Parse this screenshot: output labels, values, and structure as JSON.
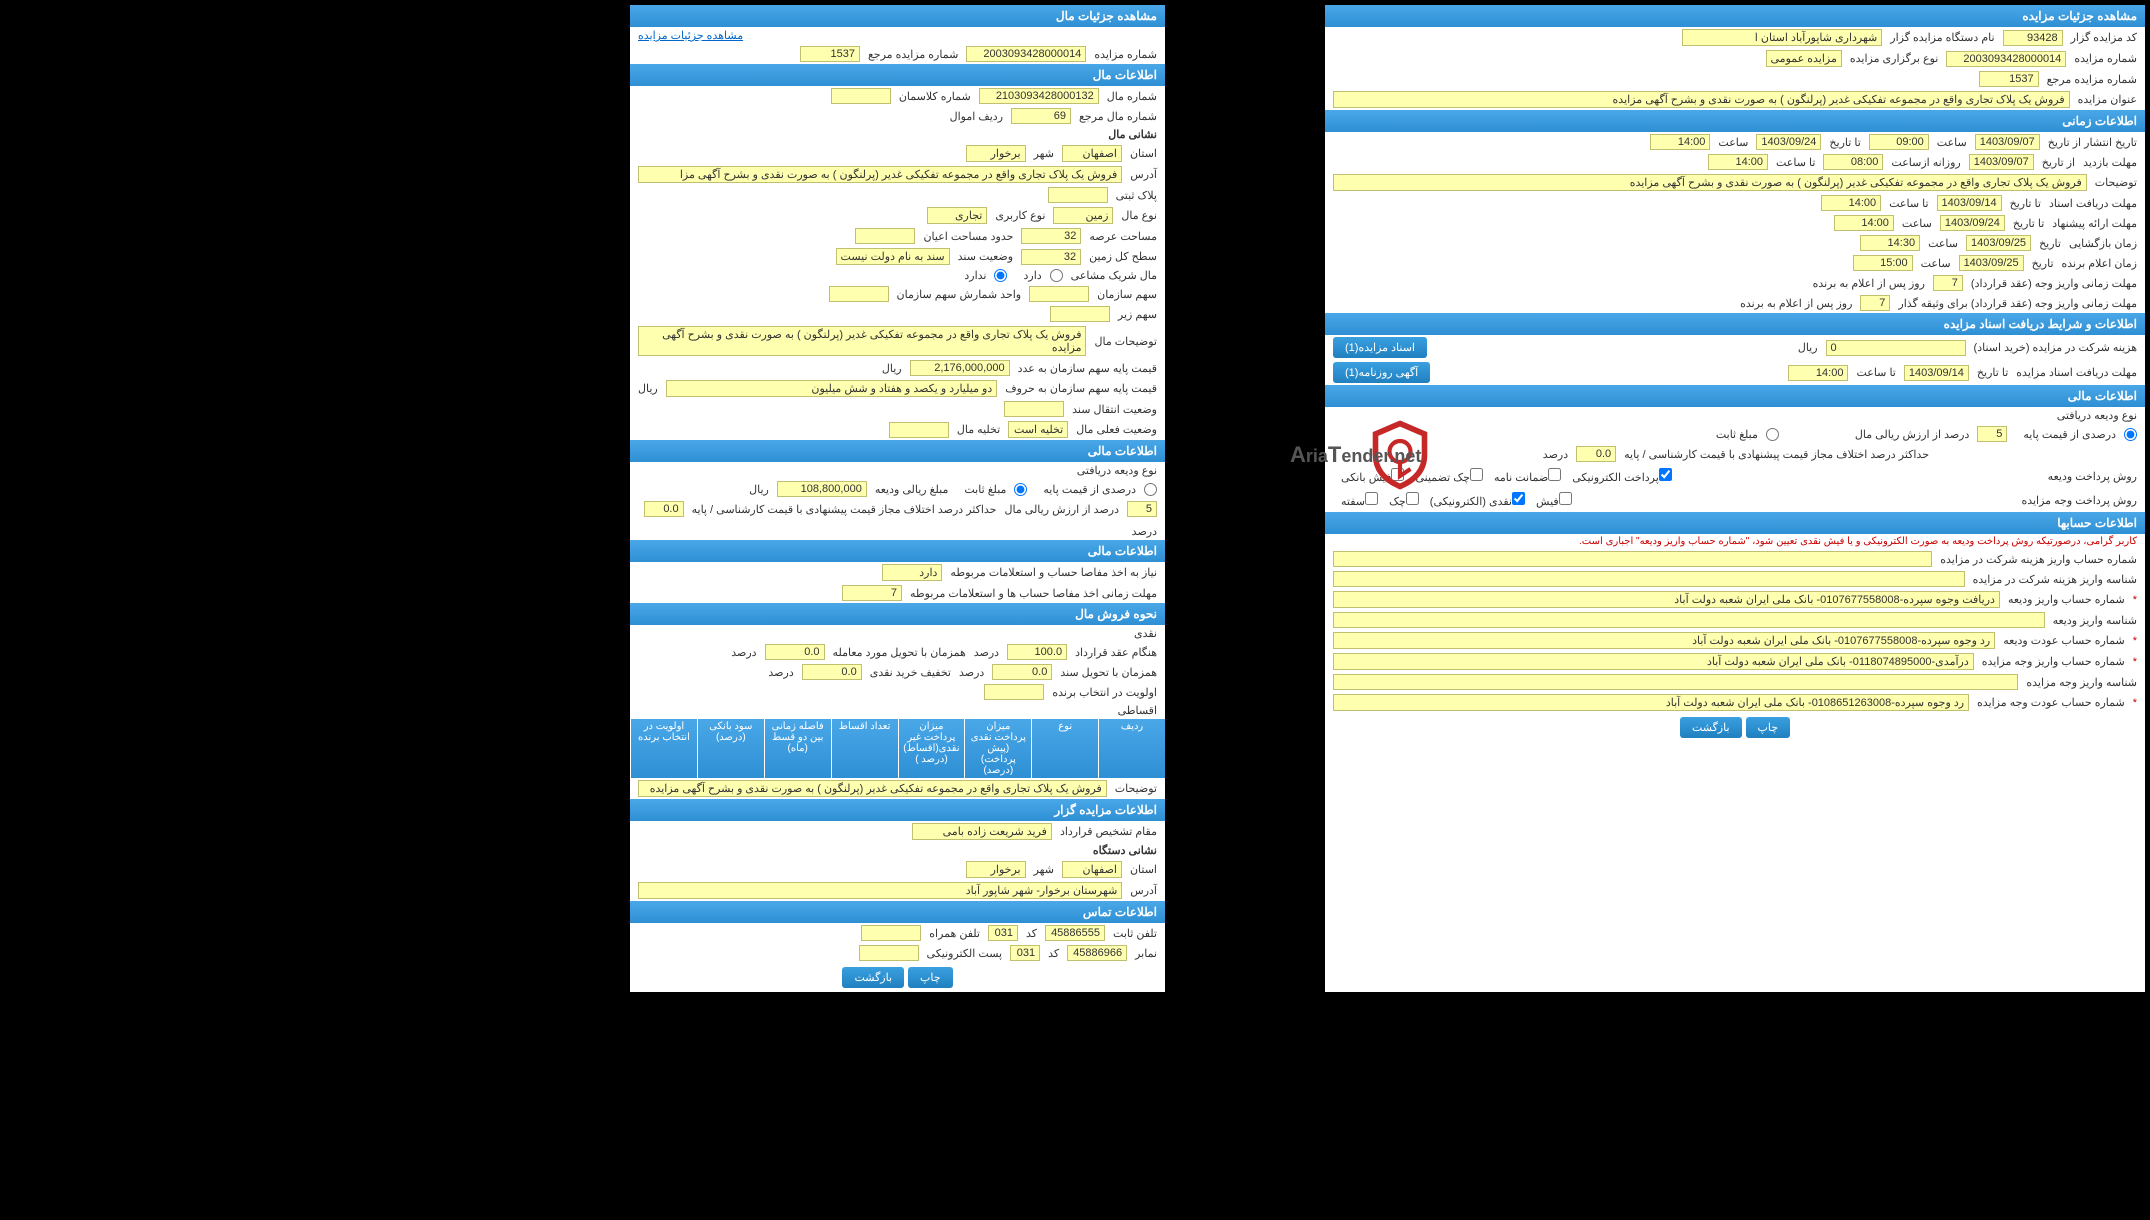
{
  "colors": {
    "header_bg_top": "#4aa8e8",
    "header_bg_bottom": "#2e8fd4",
    "field_bg": "#ffffb0",
    "field_border": "#c0c070",
    "btn_bg_top": "#3aa0e0",
    "btn_bg_bottom": "#2080c0",
    "link": "#0066cc",
    "error": "#c00"
  },
  "right": {
    "header1": "مشاهده جزئیات مزایده",
    "row1": {
      "code_label": "کد مزایده گزار",
      "code": "93428",
      "org_label": "نام دستگاه مزایده گزار",
      "org": "شهرداری شاپورآباد استان ا"
    },
    "row2": {
      "num_label": "شماره مزایده",
      "num": "2003093428000014",
      "type_label": "نوع برگزاری مزایده",
      "type": "مزایده عمومی"
    },
    "row3": {
      "ref_label": "شماره مزایده مرجع",
      "ref": "1537"
    },
    "row4": {
      "title_label": "عنوان مزایده",
      "title": "فروش یک پلاک تجاری واقع در مجموعه تفکیکی غدیر (پرلنگون ) به صورت نقدی و بشرح آگهی مزایده"
    },
    "header2": "اطلاعات زمانی",
    "time_rows": [
      {
        "l1": "تاریخ انتشار از تاریخ",
        "v1": "1403/09/07",
        "l2": "ساعت",
        "v2": "09:00",
        "l3": "تا تاریخ",
        "v3": "1403/09/24",
        "l4": "ساعت",
        "v4": "14:00"
      },
      {
        "l1": "مهلت بازدید",
        "l1b": "از تاریخ",
        "v1": "1403/09/07",
        "l2": "روزانه ازساعت",
        "v2": "08:00",
        "l3": "تا ساعت",
        "v3": "14:00"
      },
      {
        "l1": "توضیحات",
        "v1": "فروش یک پلاک تجاری واقع در مجموعه تفکیکی غدیر (پرلنگون ) به صورت نقدی و بشرح آگهی مزایده"
      },
      {
        "l1": "مهلت دریافت اسناد",
        "l1b": "تا تاریخ",
        "v1": "1403/09/14",
        "l2": "تا ساعت",
        "v2": "14:00"
      },
      {
        "l1": "مهلت ارائه پیشنهاد",
        "l1b": "تا تاریخ",
        "v1": "1403/09/24",
        "l2": "ساعت",
        "v2": "14:00"
      },
      {
        "l1": "زمان بازگشایی",
        "l1b": "تاریخ",
        "v1": "1403/09/25",
        "l2": "ساعت",
        "v2": "14:30"
      },
      {
        "l1": "زمان اعلام برنده",
        "l1b": "تاریخ",
        "v1": "1403/09/25",
        "l2": "ساعت",
        "v2": "15:00"
      }
    ],
    "deadline1_label": "مهلت زمانی واریز وجه (عقد قرارداد)",
    "deadline1_val": "7",
    "deadline1_suffix": "روز پس از اعلام به برنده",
    "deadline2_label": "مهلت زمانی واریز وجه (عقد قرارداد) برای وثیقه گذار",
    "deadline2_val": "7",
    "deadline2_suffix": "روز پس از اعلام به برنده",
    "header3": "اطلاعات و شرایط دریافت اسناد مزایده",
    "fee_label": "هزینه شرکت در مزایده (خرید اسناد)",
    "fee_val": "0",
    "fee_unit": "ریال",
    "btn_docs": "اسناد مزایده(1)",
    "doc_deadline_label": "مهلت دریافت اسناد مزایده",
    "doc_deadline_date_label": "تا تاریخ",
    "doc_deadline_date": "1403/09/14",
    "doc_deadline_time_label": "تا ساعت",
    "doc_deadline_time": "14:00",
    "btn_news": "آگهی روزنامه(1)",
    "header4": "اطلاعات مالی",
    "deposit_type_label": "نوع ودیعه دریافتی",
    "pct_label": "درصدی از قیمت پایه",
    "fixed_label": "مبلغ ثابت",
    "pct_val": "5",
    "pct_suffix": "درصد از ارزش ریالی مال",
    "diff_label": "حداکثر درصد اختلاف مجاز قیمت پیشنهادی با قیمت کارشناسی / پایه",
    "diff_val": "0.0",
    "diff_unit": "درصد",
    "pay_method_label": "روش پرداخت ودیعه",
    "pay_opts": [
      "پرداخت الکترونیکی",
      "ضمانت نامه",
      "چک تضمینی",
      "فیش بانکی"
    ],
    "auction_pay_label": "روش پرداخت وجه مزایده",
    "auction_pay_opts": [
      "فیش",
      "نقدی (الکترونیکی)",
      "چک",
      "سفته"
    ],
    "header5": "اطلاعات حسابها",
    "note": "کاربر گرامی، درصورتیکه روش پرداخت ودیعه به صورت الکترونیکی و یا فیش نقدی تعیین شود، \"شماره حساب واریز ودیعه\" اجباری است.",
    "acc_rows": [
      {
        "label": "شماره حساب واریز هزینه شرکت در مزایده",
        "val": ""
      },
      {
        "label": "شناسه واریز هزینه شرکت در مزایده",
        "val": ""
      },
      {
        "label": "شماره حساب واریز ودیعه",
        "val": "دریافت وجوه سپرده-0107677558008- بانک ملی ایران شعبه دولت آباد",
        "star": true
      },
      {
        "label": "شناسه واریز ودیعه",
        "val": ""
      },
      {
        "label": "شماره حساب عودت ودیعه",
        "val": "رد وجوه سپرده-0107677558008- بانک ملی ایران شعبه دولت آباد",
        "star": true
      },
      {
        "label": "شماره حساب واریز وجه مزایده",
        "val": "درآمدی-0118074895000- بانک ملی ایران شعبه دولت آباد",
        "star": true
      },
      {
        "label": "شناسه واریز وجه مزایده",
        "val": ""
      },
      {
        "label": "شماره حساب عودت وجه مزایده",
        "val": "رد وجوه سپرده-0108651263008- بانک ملی ایران شعبه دولت آباد",
        "star": true
      }
    ],
    "btn_print": "چاپ",
    "btn_back": "بازگشت"
  },
  "left": {
    "header1": "مشاهده جزئیات مال",
    "link1": "مشاهده جزئیات مزایده",
    "ref_label": "شماره مزایده مرجع",
    "ref": "1537",
    "auction_num_label": "شماره مزایده",
    "auction_num": "2003093428000014",
    "header2": "اطلاعات مال",
    "item_num_label": "شماره مال",
    "item_num": "2103093428000132",
    "class_label": "شماره کلاسمان",
    "item_ref_label": "شماره مال مرجع",
    "item_ref": "69",
    "row_label": "ردیف اموال",
    "sub_header_addr": "نشانی مال",
    "province_label": "استان",
    "province": "اصفهان",
    "city_label": "شهر",
    "city": "برخوار",
    "address_label": "آدرس",
    "address": "فروش یک پلاک تجاری واقع در مجموعه تفکیکی غدیر (پرلنگون ) به صورت نقدی و بشرح آگهی مزا",
    "plaque_label": "پلاک ثبتی",
    "prop_type_label": "نوع مال",
    "prop_type": "زمین",
    "usage_label": "نوع کاربری",
    "usage": "تجاری",
    "area_label": "مساحت عرصه",
    "area": "32",
    "struct_label": "حدود مساحت اعیان",
    "land_label": "سطح کل زمین",
    "land": "32",
    "ownership_label": "وضعیت سند",
    "ownership": "سند به نام دولت نیست",
    "shared_label": "مال شریک مشاعی",
    "shared_yes": "دارد",
    "shared_no": "ندارد",
    "org_share_label": "سهم سازمان",
    "unit_label": "واحد شمارش سهم سازمان",
    "sub_share_label": "سهم زیر",
    "notes_label": "توضیحات مال",
    "notes": "فروش یک پلاک تجاری واقع در مجموعه تفکیکی غدیر (پرلنگون ) به صورت نقدی و بشرح آگهی مزایده",
    "base_num_label": "قیمت پایه سهم سازمان به عدد",
    "base_num": "2,176,000,000",
    "base_num_unit": "ریال",
    "base_word_label": "قیمت پایه سهم سازمان به حروف",
    "base_word": "دو میلیارد و یکصد و هفتاد و شش میلیون",
    "base_word_unit": "ریال",
    "transfer_label": "وضعیت انتقال سند",
    "status_label": "وضعیت فعلی مال",
    "status": "تخلیه است",
    "empty_label": "تخلیه مال",
    "header3": "اطلاعات مالی",
    "deposit_type_label2": "نوع ودیعه دریافتی",
    "pct_label2": "درصدی از قیمت پایه",
    "fixed_label2": "مبلغ ثابت",
    "deposit_amt_label": "مبلغ ریالی ودیعه",
    "deposit_amt": "108,800,000",
    "deposit_unit": "ریال",
    "pct_val2": "5",
    "pct_suffix2": "درصد از ارزش ریالی مال",
    "diff_label2": "حداکثر درصد اختلاف مجاز قیمت پیشنهادی با قیمت کارشناسی / پایه",
    "diff_val2": "0.0",
    "diff_unit2": "درصد",
    "header4": "اطلاعات مالی",
    "clearance_label": "نیاز به اخذ مفاصا حساب و استعلامات مربوطه",
    "clearance": "دارد",
    "clearance_time_label": "مهلت زمانی اخذ مفاصا حساب ها و استعلامات مربوطه",
    "clearance_time": "7",
    "header5": "نحوه فروش مال",
    "cash_label": "نقدی",
    "contract_label": "هنگام عقد قرارداد",
    "contract_val": "100.0",
    "contract_unit": "درصد",
    "trade_label": "همزمان با تحویل مورد معامله",
    "trade_val": "0.0",
    "trade_unit": "درصد",
    "transfer2_label": "همزمان با تحویل سند",
    "transfer2_val": "0.0",
    "transfer2_unit": "درصد",
    "discount_label": "تخفیف خرید نقدی",
    "discount_val": "0.0",
    "discount_unit": "درصد",
    "priority_label": "اولویت در انتخاب برنده",
    "install_label": "اقساطی",
    "table_headers": [
      "ردیف",
      "نوع",
      "میزان پرداخت نقدی (پیش پرداخت) (درصد)",
      "میزان پرداخت غیر نقدی(اقساط) (درصد )",
      "تعداد اقساط",
      "فاصله زمانی بین دو قسط (ماه)",
      "سود بانکی (درصد)",
      "اولویت در انتخاب برنده"
    ],
    "notes2_label": "توضیحات",
    "notes2": "فروش یک پلاک تجاری واقع در مجموعه تفکیکی غدیر (پرلنگون ) به صورت نقدی و بشرح آگهی مزایده",
    "header6": "اطلاعات مزایده گزار",
    "contract_auth_label": "مقام تشخیص قرارداد",
    "contract_auth": "فرید شریعت زاده بامی",
    "sub_header_org": "نشانی دستگاه",
    "province2_label": "استان",
    "province2": "اصفهان",
    "city2_label": "شهر",
    "city2": "برخوار",
    "address2_label": "آدرس",
    "address2": "شهرستان برخوار- شهر شاپور آباد",
    "header7": "اطلاعات تماس",
    "phone_label": "تلفن ثابت",
    "phone": "45886555",
    "ext_label": "کد",
    "ext": "031",
    "mobile_label": "تلفن همراه",
    "fax_label": "نمابر",
    "fax": "45886966",
    "fax_ext_label": "کد",
    "fax_ext": "031",
    "email_label": "پست الکترونیکی",
    "btn_print": "چاپ",
    "btn_back": "بازگشت"
  },
  "logo_text": "AriaTender.net"
}
